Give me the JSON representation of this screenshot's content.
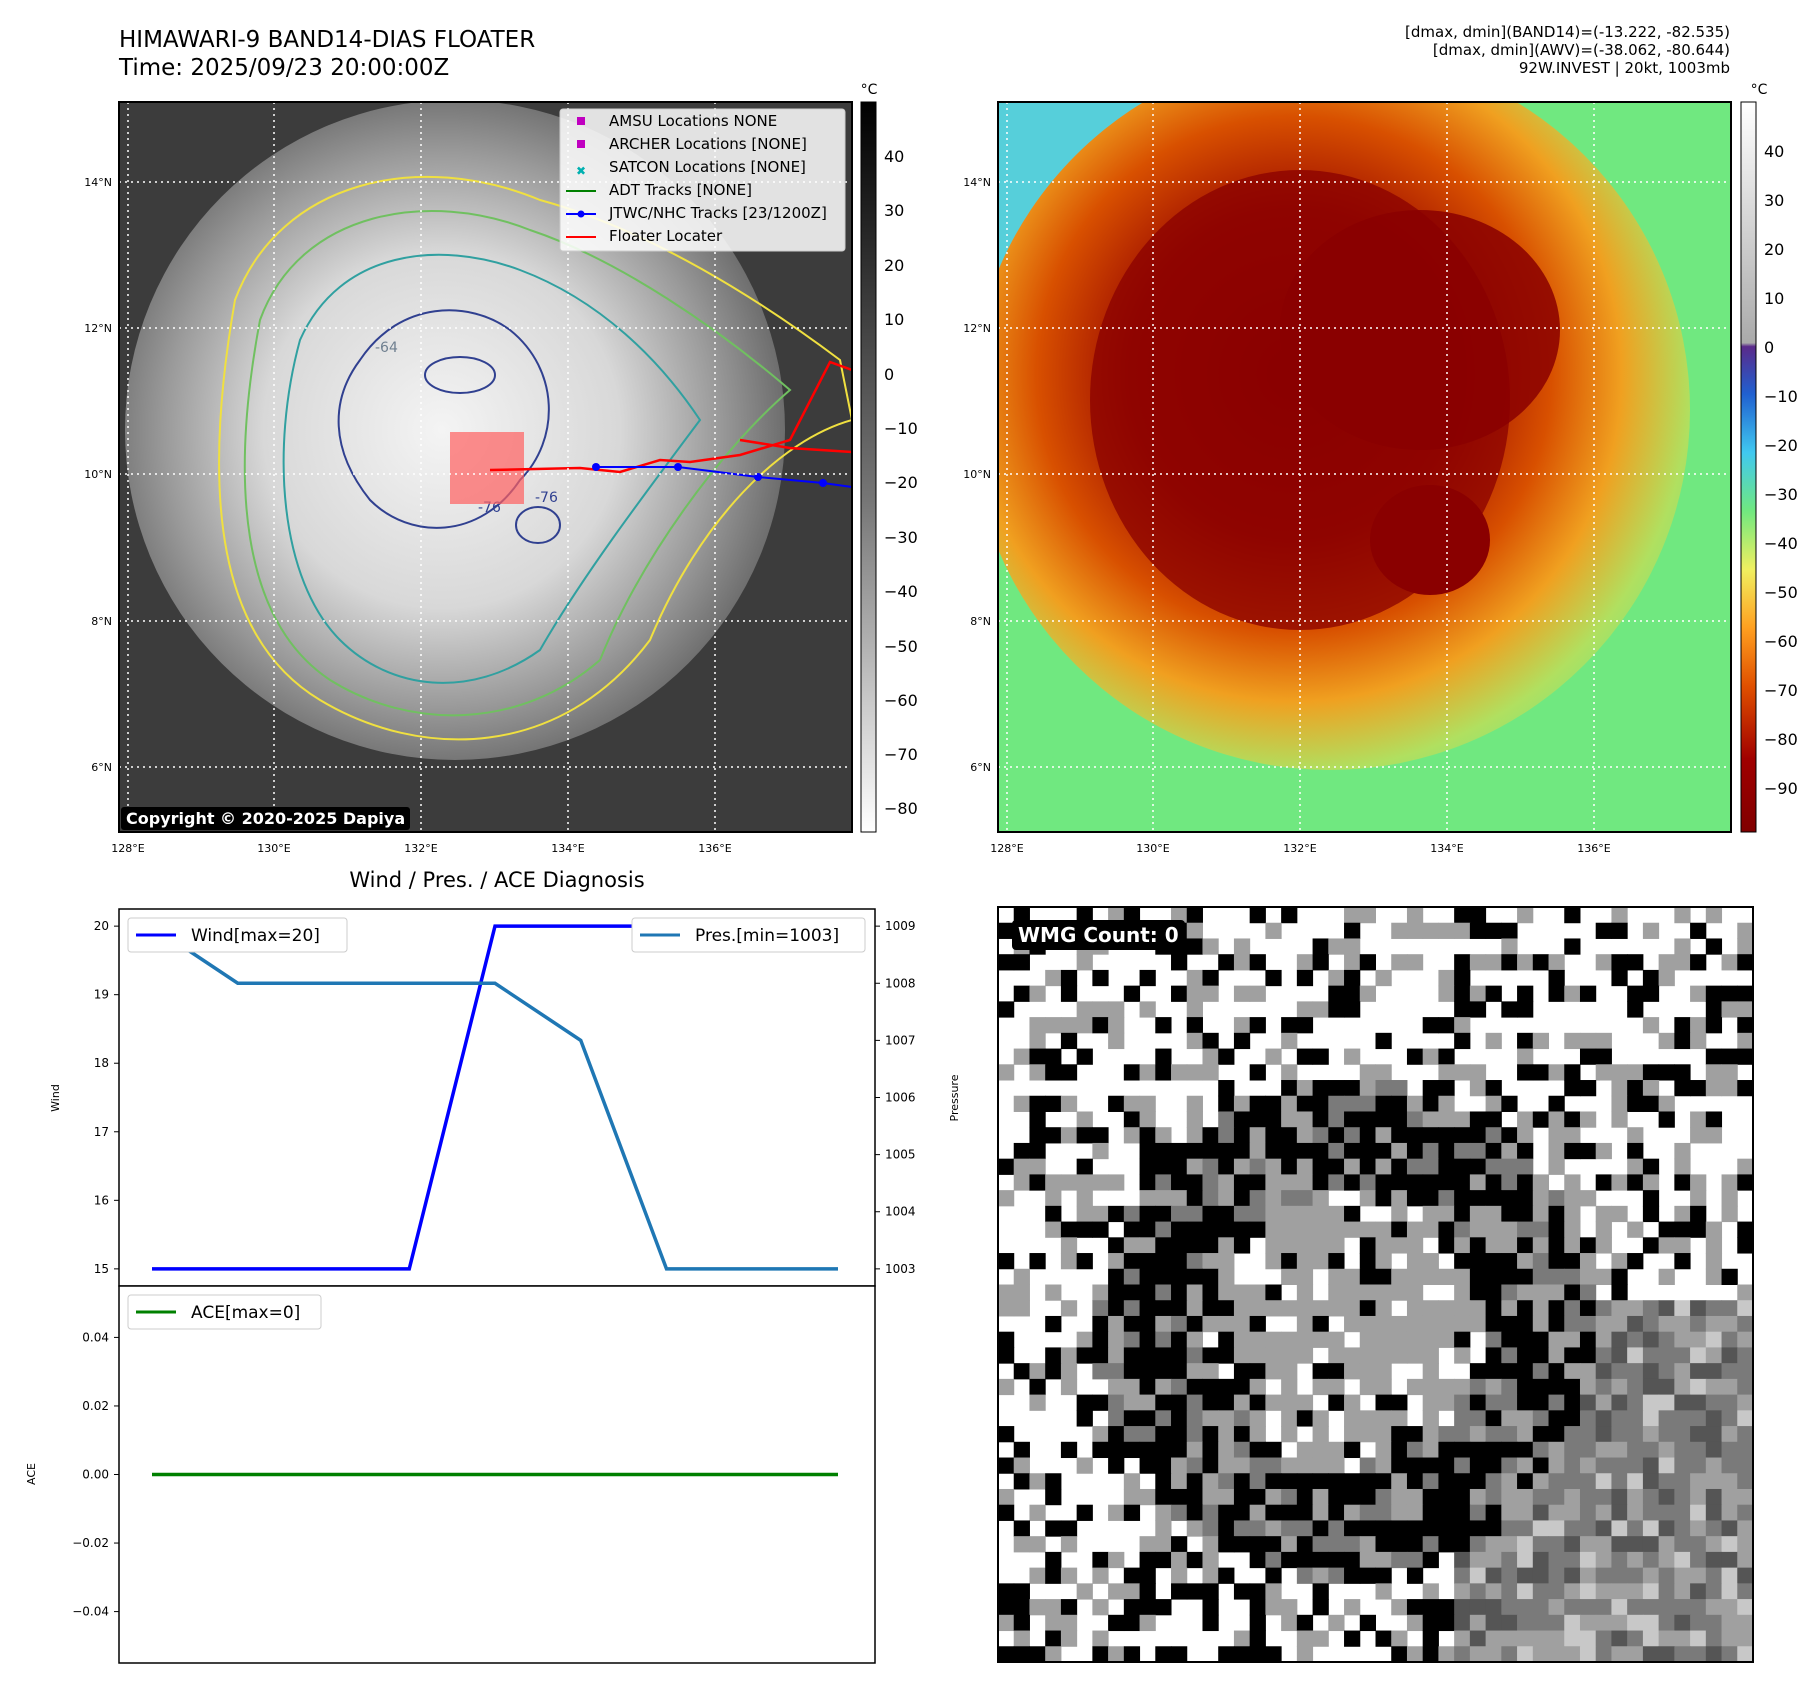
{
  "header": {
    "title_line1": "HIMAWARI-9 BAND14-DIAS FLOATER",
    "title_line2": "Time: 2025/09/23 20:00:00Z",
    "info_line1": "[dmax, dmin](BAND14)=(-13.222, -82.535)",
    "info_line2": "[dmax, dmin](AWV)=(-38.062, -80.644)",
    "info_line3": "92W.INVEST | 20kt, 1003mb"
  },
  "map": {
    "lon_ticks": [
      "128°E",
      "130°E",
      "132°E",
      "134°E",
      "136°E"
    ],
    "lat_ticks": [
      "14°N",
      "12°N",
      "10°N",
      "8°N",
      "6°N"
    ],
    "legend": [
      {
        "label": "AMSU Locations NONE",
        "marker": "square",
        "color": "#c000c0"
      },
      {
        "label": "ARCHER Locations [NONE]",
        "marker": "square",
        "color": "#c000c0"
      },
      {
        "label": "SATCON Locations [NONE]",
        "marker": "x",
        "color": "#00b0b0"
      },
      {
        "label": "ADT Tracks [NONE]",
        "marker": "line",
        "color": "#008000"
      },
      {
        "label": "JTWC/NHC Tracks [23/1200Z]",
        "marker": "line-dot",
        "color": "#0000ff"
      },
      {
        "label": "Floater Locater",
        "marker": "line",
        "color": "#ff0000"
      }
    ],
    "copyright": "Copyright © 2020-2025 Dapiya",
    "contour_labels": [
      "-76",
      "-64",
      "-76"
    ]
  },
  "colorbars": {
    "unit": "°C",
    "left_ticks": [
      "40",
      "30",
      "20",
      "10",
      "0",
      "−10",
      "−20",
      "−30",
      "−40",
      "−50",
      "−60",
      "−70",
      "−80"
    ],
    "right_ticks": [
      "40",
      "30",
      "20",
      "10",
      "0",
      "−10",
      "−20",
      "−30",
      "−40",
      "−50",
      "−60",
      "−70",
      "−80",
      "−90"
    ]
  },
  "diagnosis": {
    "title": "Wind / Pres. / ACE Diagnosis",
    "wind_label": "Wind",
    "pressure_label": "Pressure",
    "ace_label": "ACE",
    "wind_legend": "Wind[max=20]",
    "pres_legend": "Pres.[min=1003]",
    "ace_legend": "ACE[max=0]"
  },
  "wmg": {
    "label": "WMG Count: 0"
  },
  "chart_data": [
    {
      "type": "line",
      "title": "Wind / Pres. / ACE Diagnosis",
      "x": [
        0,
        1,
        2,
        3,
        4,
        5,
        6,
        7,
        8
      ],
      "series": [
        {
          "name": "Wind[max=20]",
          "axis": "left",
          "color": "#0000ff",
          "values": [
            15,
            15,
            15,
            15,
            20,
            20,
            20,
            20,
            20
          ]
        },
        {
          "name": "Pres.[min=1003]",
          "axis": "right",
          "color": "#1f77b4",
          "values": [
            1009,
            1008,
            1008,
            1008,
            1008,
            1007,
            1003,
            1003,
            1003
          ]
        }
      ],
      "ylabel": "Wind",
      "ylabel_right": "Pressure",
      "yticks": [
        15,
        16,
        17,
        18,
        19,
        20
      ],
      "yticks_right": [
        1003,
        1004,
        1005,
        1006,
        1007,
        1008,
        1009
      ],
      "ylim": [
        14.75,
        20.25
      ],
      "ylim_right": [
        1002.7,
        1009.3
      ]
    },
    {
      "type": "line",
      "x": [
        0,
        8
      ],
      "series": [
        {
          "name": "ACE[max=0]",
          "color": "#008000",
          "values": [
            0,
            0
          ]
        }
      ],
      "ylabel": "ACE",
      "yticks": [
        0.04,
        0.02,
        0.0,
        -0.02,
        -0.04
      ],
      "ytick_labels": [
        "0.04",
        "0.02",
        "0.00",
        "−0.02",
        "−0.04"
      ],
      "ylim": [
        -0.055,
        0.055
      ]
    }
  ],
  "colors": {
    "wind": "#0000ff",
    "pressure": "#1f77b4",
    "ace": "#008000",
    "track_jtwc": "#0000ff",
    "floater": "#ff0000"
  }
}
